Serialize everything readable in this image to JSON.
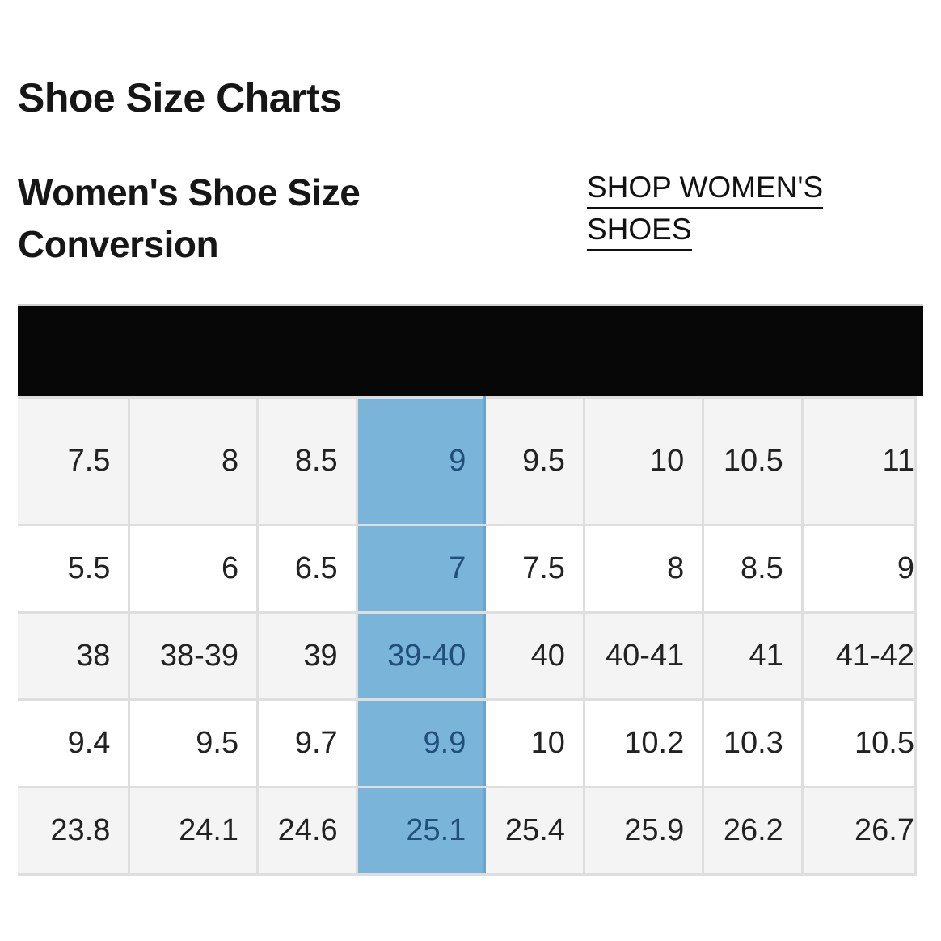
{
  "page_title": "Shoe Size Charts",
  "section_title": "Women's Shoe Size Conversion",
  "shop_link": "SHOP WOMEN'S SHOES",
  "colors": {
    "header_bar": "#070707",
    "highlight": "#7bb4d9",
    "highlight_text": "#1f4f7a",
    "row_shaded": "#f4f4f4",
    "row_plain": "#ffffff",
    "grid": "#dedede"
  },
  "table": {
    "highlighted_column": 3,
    "rows": [
      [
        "7.5",
        "8",
        "8.5",
        "9",
        "9.5",
        "10",
        "10.5",
        "11"
      ],
      [
        "5.5",
        "6",
        "6.5",
        "7",
        "7.5",
        "8",
        "8.5",
        "9"
      ],
      [
        "38",
        "38-39",
        "39",
        "39-40",
        "40",
        "40-41",
        "41",
        "41-42"
      ],
      [
        "9.4",
        "9.5",
        "9.7",
        "9.9",
        "10",
        "10.2",
        "10.3",
        "10.5"
      ],
      [
        "23.8",
        "24.1",
        "24.6",
        "25.1",
        "25.4",
        "25.9",
        "26.2",
        "26.7"
      ]
    ]
  }
}
